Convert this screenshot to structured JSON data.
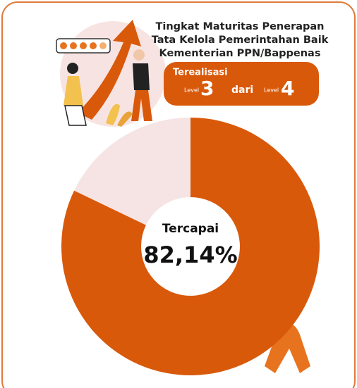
{
  "chart_data": {
    "type": "donut",
    "title_lines": [
      "Tingkat Maturitas Penerapan",
      "Tata Kelola Pemerintahan Baik",
      "Kementerian PPN/Bappenas"
    ],
    "categories": [
      "Tercapai",
      null
    ],
    "values": [
      82.14,
      17.86
    ],
    "value_labels": [
      "82,14%",
      null
    ],
    "colors": [
      "#d9590b",
      "#f6e4e4"
    ],
    "badge": {
      "label": "Terealisasi",
      "current": {
        "label": "Level",
        "value": 3
      },
      "connector": "dari",
      "target": {
        "label": "Level",
        "value": 4
      }
    }
  }
}
